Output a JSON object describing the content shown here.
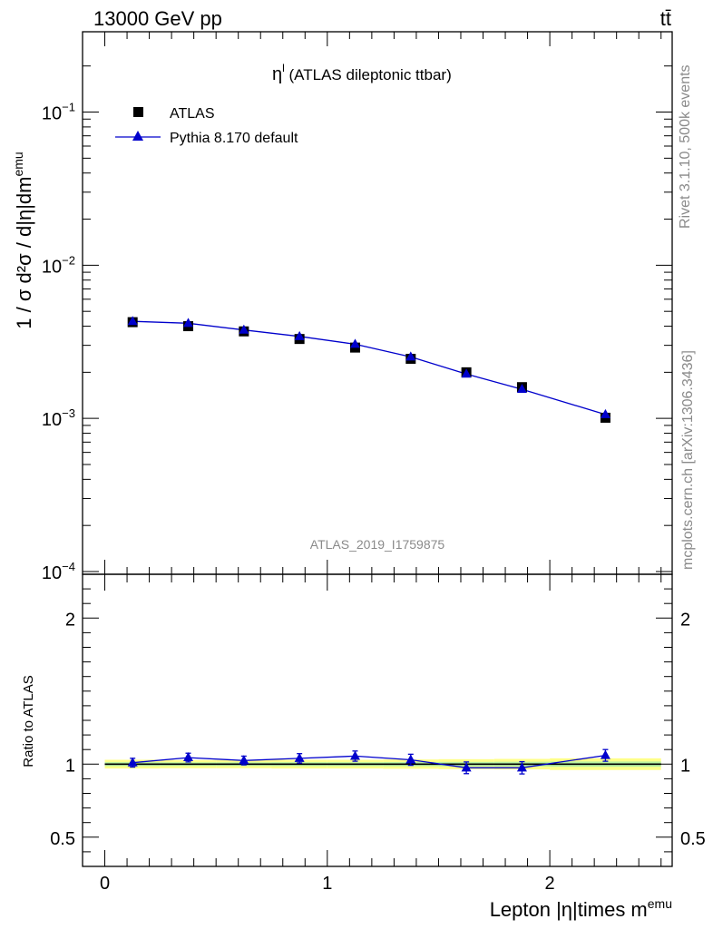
{
  "header": {
    "energy_label": "13000 GeV pp",
    "process_label": "tt̄"
  },
  "side": {
    "rivet_label": "Rivet 3.1.10,  500k events",
    "site_label": "mcplots.cern.ch [arXiv:1306.3436]"
  },
  "chart_data": [
    {
      "type": "scatter",
      "title": "η",
      "title_sup": "l",
      "title_rest": " (ATLAS dileptonic ttbar)",
      "analysis_label": "ATLAS_2019_I1759875",
      "ylabel": "1 / σ  d²σ / d|η|dm",
      "ylabel_sup": "emu",
      "yscale": "log",
      "xlim": [
        -0.1,
        2.55
      ],
      "ylim": [
        0.0001,
        0.3
      ],
      "ytick_labels": [
        {
          "base": "10",
          "exp": "−1"
        },
        {
          "base": "10",
          "exp": "−2"
        },
        {
          "base": "10",
          "exp": "−3"
        },
        {
          "base": "10",
          "exp": "−4"
        }
      ],
      "legend_position": "top-left",
      "series": [
        {
          "name": "ATLAS",
          "marker": "square",
          "color": "#000000",
          "x": [
            0.125,
            0.375,
            0.625,
            0.875,
            1.125,
            1.375,
            1.625,
            1.875,
            2.25
          ],
          "y": [
            0.00425,
            0.004,
            0.0037,
            0.0033,
            0.0029,
            0.00245,
            0.002,
            0.0016,
            0.00101
          ]
        },
        {
          "name": "Pythia 8.170 default",
          "marker": "triangle",
          "color": "#0000cc",
          "x": [
            0.125,
            0.375,
            0.625,
            0.875,
            1.125,
            1.375,
            1.625,
            1.875,
            2.25
          ],
          "y": [
            0.0043,
            0.00418,
            0.00378,
            0.00343,
            0.00305,
            0.00252,
            0.00195,
            0.00155,
            0.00106
          ]
        }
      ]
    },
    {
      "type": "line",
      "ylabel": "Ratio to ATLAS",
      "xlabel": "Lepton |η|times m",
      "xlabel_sup": "emu",
      "xlim": [
        -0.1,
        2.55
      ],
      "ylim": [
        0.3,
        2.3
      ],
      "x_ticks": [
        0,
        1,
        2
      ],
      "x_tick_labels": [
        "0",
        "1",
        "2"
      ],
      "y_ticks": [
        0.5,
        1,
        2
      ],
      "y_tick_labels": [
        "0.5",
        "1",
        "2"
      ],
      "band_color": "#ffff88",
      "band_inner_color": "#b7f0a0",
      "reference": {
        "x": [
          0,
          0.25,
          0.5,
          0.75,
          1.0,
          1.25,
          1.5,
          1.75,
          2.0,
          2.5
        ],
        "band_half": [
          0.03,
          0.028,
          0.028,
          0.03,
          0.03,
          0.032,
          0.034,
          0.036,
          0.04,
          0.04
        ]
      },
      "series": [
        {
          "name": "Pythia 8.170 default",
          "color": "#0000cc",
          "x": [
            0.125,
            0.375,
            0.625,
            0.875,
            1.125,
            1.375,
            1.625,
            1.875,
            2.25
          ],
          "y": [
            1.01,
            1.045,
            1.025,
            1.04,
            1.055,
            1.03,
            0.975,
            0.975,
            1.06
          ],
          "err": [
            0.03,
            0.03,
            0.03,
            0.032,
            0.035,
            0.038,
            0.04,
            0.042,
            0.04
          ]
        }
      ]
    }
  ]
}
